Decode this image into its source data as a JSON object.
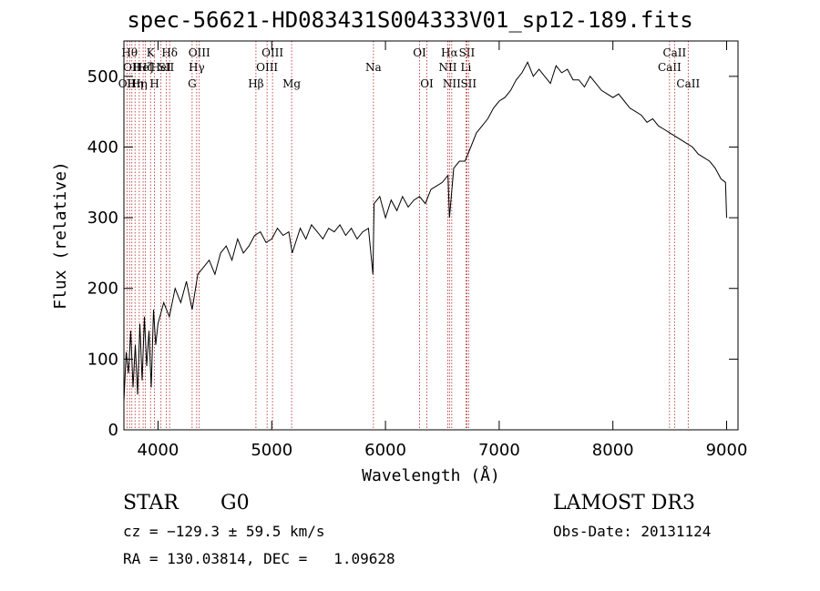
{
  "chart_data": {
    "type": "line",
    "title": "spec-56621-HD083431S004333V01_sp12-189.fits",
    "xlabel": "Wavelength (Å)",
    "ylabel": "Flux (relative)",
    "xlim": [
      3700,
      9100
    ],
    "ylim": [
      0,
      550
    ],
    "xticks": [
      4000,
      5000,
      6000,
      7000,
      8000,
      9000
    ],
    "xtick_labels": [
      "4000",
      "5000",
      "6000",
      "7000",
      "8000",
      "9000"
    ],
    "yticks": [
      0,
      100,
      200,
      300,
      400,
      500
    ],
    "ytick_labels": [
      "0",
      "100",
      "200",
      "300",
      "400",
      "500"
    ],
    "series": [
      {
        "name": "flux",
        "x": [
          3700,
          3720,
          3740,
          3760,
          3780,
          3800,
          3820,
          3840,
          3860,
          3880,
          3900,
          3920,
          3940,
          3960,
          3980,
          4000,
          4050,
          4100,
          4150,
          4200,
          4250,
          4300,
          4350,
          4400,
          4450,
          4500,
          4550,
          4600,
          4650,
          4700,
          4750,
          4800,
          4850,
          4900,
          4950,
          5000,
          5050,
          5100,
          5150,
          5180,
          5250,
          5300,
          5350,
          5400,
          5450,
          5500,
          5550,
          5600,
          5650,
          5700,
          5750,
          5800,
          5850,
          5890,
          5900,
          5950,
          6000,
          6050,
          6100,
          6150,
          6200,
          6250,
          6300,
          6350,
          6400,
          6450,
          6500,
          6550,
          6563,
          6600,
          6650,
          6700,
          6750,
          6800,
          6850,
          6900,
          6950,
          7000,
          7050,
          7100,
          7150,
          7200,
          7250,
          7300,
          7350,
          7400,
          7450,
          7500,
          7550,
          7600,
          7650,
          7700,
          7750,
          7800,
          7850,
          7900,
          7950,
          8000,
          8050,
          8100,
          8150,
          8200,
          8250,
          8300,
          8350,
          8400,
          8450,
          8500,
          8550,
          8600,
          8650,
          8700,
          8750,
          8800,
          8850,
          8900,
          8950,
          8990,
          9000
        ],
        "y": [
          40,
          110,
          80,
          140,
          60,
          120,
          50,
          150,
          70,
          160,
          90,
          140,
          60,
          170,
          120,
          150,
          180,
          160,
          200,
          180,
          210,
          170,
          220,
          230,
          240,
          220,
          250,
          260,
          240,
          270,
          250,
          260,
          275,
          280,
          265,
          270,
          285,
          275,
          280,
          250,
          285,
          270,
          290,
          280,
          270,
          285,
          280,
          290,
          275,
          285,
          270,
          280,
          285,
          220,
          320,
          330,
          300,
          325,
          310,
          330,
          315,
          325,
          330,
          320,
          340,
          345,
          350,
          360,
          300,
          370,
          380,
          380,
          400,
          420,
          430,
          440,
          455,
          465,
          470,
          480,
          495,
          505,
          520,
          500,
          510,
          500,
          490,
          515,
          505,
          510,
          495,
          495,
          485,
          500,
          490,
          480,
          475,
          470,
          475,
          465,
          455,
          450,
          445,
          435,
          440,
          430,
          425,
          420,
          415,
          410,
          405,
          400,
          390,
          385,
          380,
          370,
          355,
          350,
          300
        ]
      }
    ],
    "line_markers": [
      {
        "wavelength": 3727,
        "label": "OII",
        "row": 3
      },
      {
        "wavelength": 3750,
        "label": "Hθ",
        "row": 1
      },
      {
        "wavelength": 3770,
        "label": "OII",
        "row": 2
      },
      {
        "wavelength": 3798,
        "label": "Hη",
        "row": 3
      },
      {
        "wavelength": 3835,
        "label": "Hη",
        "row": 3
      },
      {
        "wavelength": 3869,
        "label": "HeI",
        "row": 2
      },
      {
        "wavelength": 3889,
        "label": "Hζ",
        "row": 2
      },
      {
        "wavelength": 3934,
        "label": "K",
        "row": 1
      },
      {
        "wavelength": 3969,
        "label": "H",
        "row": 3
      },
      {
        "wavelength": 4026,
        "label": "HeI",
        "row": 2
      },
      {
        "wavelength": 4072,
        "label": "SII",
        "row": 2
      },
      {
        "wavelength": 4102,
        "label": "Hδ",
        "row": 1
      },
      {
        "wavelength": 4300,
        "label": "G",
        "row": 3
      },
      {
        "wavelength": 4340,
        "label": "Hγ",
        "row": 2
      },
      {
        "wavelength": 4363,
        "label": "OIII",
        "row": 1
      },
      {
        "wavelength": 4861,
        "label": "Hβ",
        "row": 3
      },
      {
        "wavelength": 4959,
        "label": "OIII",
        "row": 2
      },
      {
        "wavelength": 5007,
        "label": "OIII",
        "row": 1
      },
      {
        "wavelength": 5175,
        "label": "Mg",
        "row": 3
      },
      {
        "wavelength": 5894,
        "label": "Na",
        "row": 2
      },
      {
        "wavelength": 6300,
        "label": "OI",
        "row": 1
      },
      {
        "wavelength": 6364,
        "label": "OI",
        "row": 3
      },
      {
        "wavelength": 6548,
        "label": "NII",
        "row": 2
      },
      {
        "wavelength": 6563,
        "label": "Hα",
        "row": 1
      },
      {
        "wavelength": 6583,
        "label": "NII",
        "row": 3
      },
      {
        "wavelength": 6708,
        "label": "Li",
        "row": 2
      },
      {
        "wavelength": 6716,
        "label": "SII",
        "row": 1
      },
      {
        "wavelength": 6731,
        "label": "SII",
        "row": 3
      },
      {
        "wavelength": 8498,
        "label": "CaII",
        "row": 2
      },
      {
        "wavelength": 8542,
        "label": "CaII",
        "row": 1
      },
      {
        "wavelength": 8662,
        "label": "CaII",
        "row": 3
      }
    ],
    "grid": false
  },
  "info": {
    "class_label": "STAR",
    "subclass_label": "G0",
    "survey_label": "LAMOST DR3",
    "cz_text": "cz = −129.3 ± 59.5 km/s",
    "obs_date_text": "Obs-Date: 20131124",
    "coords_text": "RA = 130.03814, DEC =   1.09628"
  },
  "colors": {
    "axis": "#000000",
    "spectrum": "#000000",
    "line_marker": "#b22222",
    "background": "#ffffff"
  }
}
